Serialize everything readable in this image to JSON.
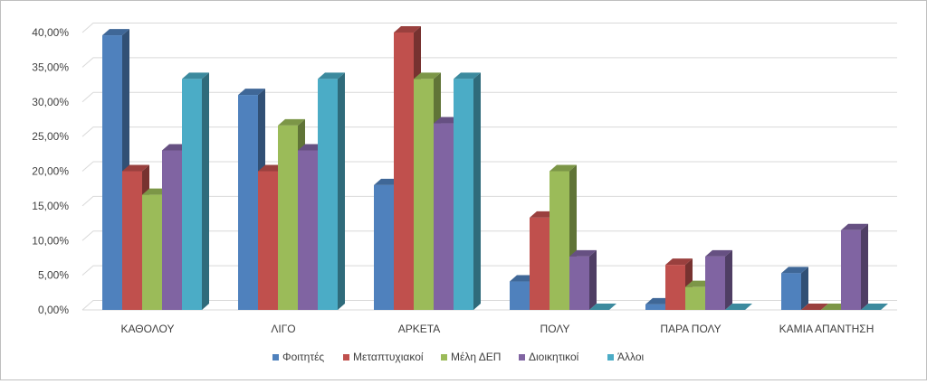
{
  "chart_data": {
    "type": "bar",
    "title": "",
    "xlabel": "",
    "ylabel": "",
    "ylim": [
      0,
      40
    ],
    "y_ticks": [
      "0,00%",
      "5,00%",
      "10,00%",
      "15,00%",
      "20,00%",
      "25,00%",
      "30,00%",
      "35,00%",
      "40,00%"
    ],
    "grid": true,
    "legend_position": "bottom",
    "categories": [
      "ΚΑΘΟΛΟΥ",
      "ΛΙΓΟ",
      "ΑΡΚΕΤΑ",
      "ΠΟΛΥ",
      "ΠΑΡΑ ΠΟΛΥ",
      "ΚΑΜΙΑ ΑΠΑΝΤΗΣΗ"
    ],
    "series": [
      {
        "name": "Φοιτητές",
        "color": "#4F81BD",
        "values": [
          39.6,
          31.0,
          18.0,
          4.1,
          0.8,
          5.3
        ]
      },
      {
        "name": "Μεταπτυχιακοί",
        "color": "#C0504D",
        "values": [
          20.0,
          20.0,
          40.0,
          13.3,
          6.5,
          0.0
        ]
      },
      {
        "name": "Μέλη ΔΕΠ",
        "color": "#9BBB59",
        "values": [
          16.6,
          26.6,
          33.3,
          20.0,
          3.3,
          0.0
        ]
      },
      {
        "name": "Διοικητικοί",
        "color": "#8064A2",
        "values": [
          23.0,
          23.0,
          26.9,
          7.7,
          7.7,
          11.5
        ]
      },
      {
        "name": "Άλλοι",
        "color": "#4BACC6",
        "values": [
          33.3,
          33.3,
          33.3,
          0.0,
          0.0,
          0.0
        ]
      }
    ]
  }
}
